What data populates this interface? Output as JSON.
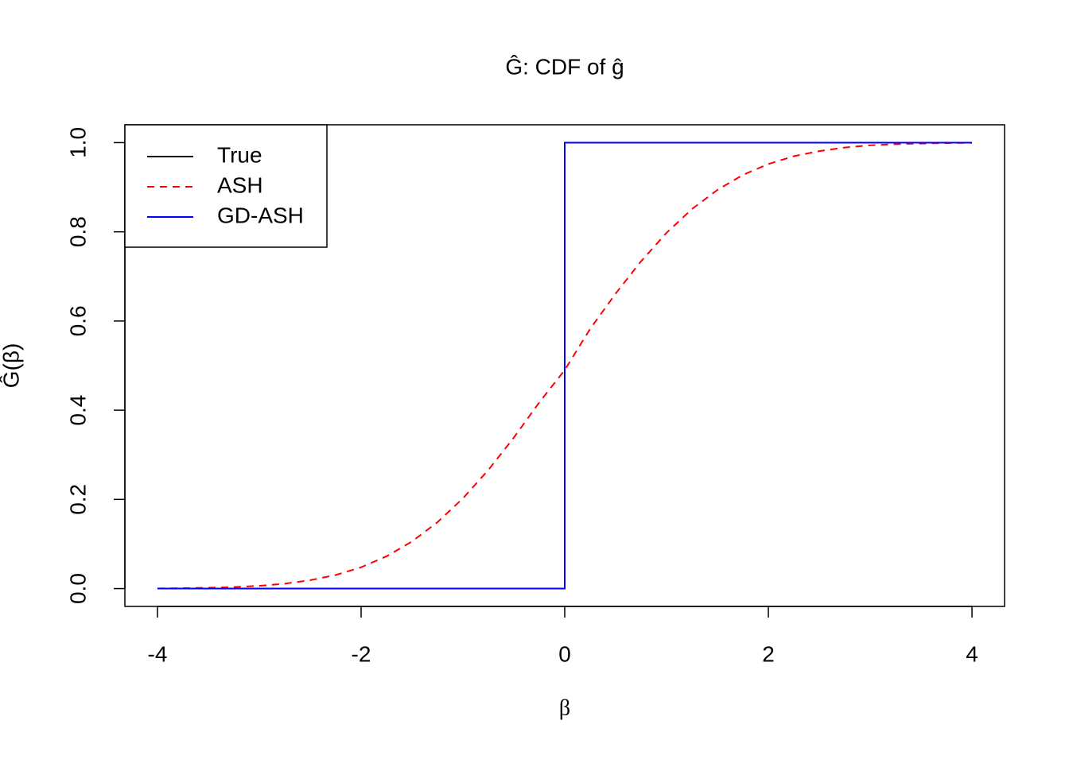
{
  "chart_data": {
    "type": "line",
    "title": "Ĝ: CDF of ĝ",
    "x_label": "β",
    "y_label": "Ĝ(β)",
    "xlim": [
      -4.32,
      4.32
    ],
    "ylim": [
      -0.04,
      1.04
    ],
    "xticks": [
      -4,
      -2,
      0,
      2,
      4
    ],
    "yticks": [
      {
        "value": 0,
        "label": "0.0"
      },
      0.2,
      0.4,
      0.6,
      0.8,
      {
        "value": 1,
        "label": "1.0"
      }
    ],
    "legend": "top-left",
    "series": [
      {
        "name": "True",
        "color": "#000000",
        "linestyle": "solid",
        "x": [
          -4,
          0,
          0,
          4
        ],
        "values": [
          0,
          0,
          1,
          1
        ]
      },
      {
        "name": "ASH",
        "color": "#ff0000",
        "linestyle": "dashed",
        "x": [
          -4,
          -3.75,
          -3.5,
          -3.25,
          -3,
          -2.75,
          -2.5,
          -2.25,
          -2,
          -1.75,
          -1.5,
          -1.25,
          -1,
          -0.75,
          -0.5,
          -0.25,
          0,
          0.25,
          0.5,
          0.75,
          1,
          1.25,
          1.5,
          1.75,
          2,
          2.25,
          2.5,
          2.75,
          3,
          3.25,
          3.5,
          3.75,
          4
        ],
        "values": [
          0.0004,
          0.0009,
          0.0018,
          0.0034,
          0.0062,
          0.011,
          0.0188,
          0.0304,
          0.0478,
          0.0724,
          0.1056,
          0.1488,
          0.2023,
          0.266,
          0.3385,
          0.4175,
          0.49,
          0.5825,
          0.6615,
          0.734,
          0.7977,
          0.8512,
          0.894,
          0.9276,
          0.952,
          0.9696,
          0.981,
          0.989,
          0.994,
          0.9966,
          0.998,
          0.9991,
          0.9996
        ]
      },
      {
        "name": "GD-ASH",
        "color": "#0000ff",
        "linestyle": "solid",
        "x": [
          -4,
          0,
          0,
          4
        ],
        "values": [
          0,
          0,
          1,
          1
        ]
      }
    ]
  }
}
